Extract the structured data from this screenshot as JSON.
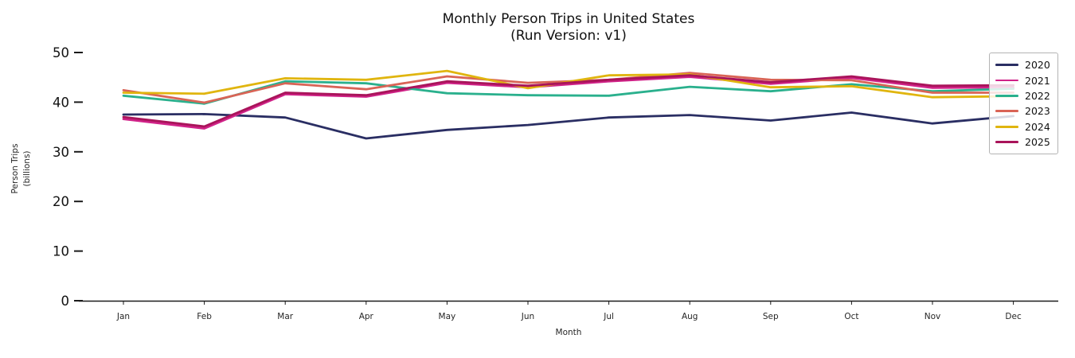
{
  "title": {
    "line1": "Monthly Person Trips in United States",
    "line2": "(Run Version: v1)"
  },
  "axes": {
    "x_label": "Month",
    "y_label_line1": "Person Trips",
    "y_label_line2": "(billions)",
    "y_tick_labels": [
      "0",
      "10",
      "20",
      "30",
      "40",
      "50"
    ]
  },
  "chart_data": {
    "type": "line",
    "title": "Monthly Person Trips in United States (Run Version: v1)",
    "xlabel": "Month",
    "ylabel": "Person Trips (billions)",
    "ylim": [
      0,
      50
    ],
    "yticks": [
      0,
      10,
      20,
      30,
      40,
      50
    ],
    "grid": false,
    "legend_position": "upper right",
    "categories": [
      "Jan",
      "Feb",
      "Mar",
      "Apr",
      "May",
      "Jun",
      "Jul",
      "Aug",
      "Sep",
      "Oct",
      "Nov",
      "Dec"
    ],
    "series": [
      {
        "name": "2020",
        "color": "#2a2e63",
        "values": [
          37.5,
          37.6,
          36.9,
          32.7,
          34.4,
          35.4,
          36.9,
          37.4,
          36.3,
          37.9,
          35.7,
          37.2
        ]
      },
      {
        "name": "2021",
        "color": "#d02288",
        "values": [
          36.6,
          34.7,
          41.6,
          41.1,
          43.9,
          43.0,
          44.2,
          45.1,
          43.7,
          44.9,
          42.9,
          43.0
        ]
      },
      {
        "name": "2022",
        "color": "#2ab08d",
        "values": [
          41.3,
          39.7,
          44.2,
          43.8,
          41.8,
          41.4,
          41.3,
          43.1,
          42.2,
          43.6,
          42.2,
          42.7
        ]
      },
      {
        "name": "2023",
        "color": "#d96456",
        "values": [
          42.4,
          39.9,
          43.8,
          42.6,
          45.2,
          43.9,
          44.5,
          45.9,
          44.5,
          44.4,
          41.9,
          41.9
        ]
      },
      {
        "name": "2024",
        "color": "#e0b50f",
        "values": [
          41.9,
          41.7,
          44.8,
          44.5,
          46.3,
          42.8,
          45.4,
          45.6,
          43.0,
          43.2,
          41.0,
          41.2
        ]
      },
      {
        "name": "2025",
        "color": "#a9145a",
        "values": [
          37.0,
          35.1,
          41.9,
          41.4,
          44.2,
          43.3,
          44.5,
          45.4,
          44.0,
          45.2,
          43.3,
          43.4
        ]
      }
    ]
  }
}
